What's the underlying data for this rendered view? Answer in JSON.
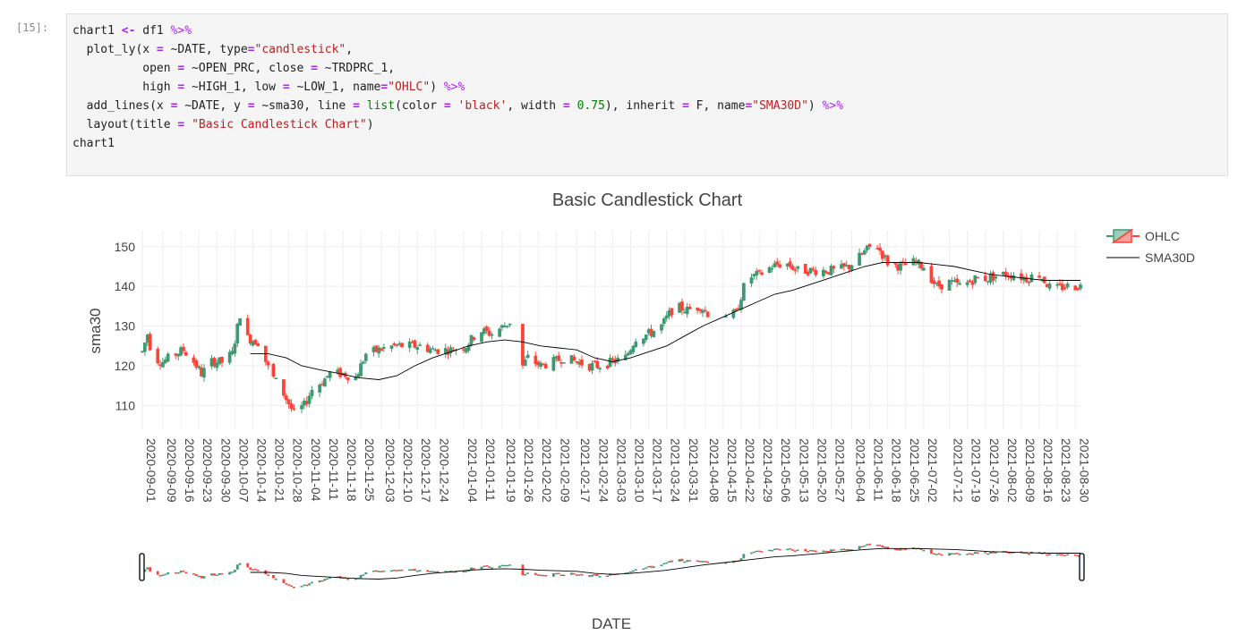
{
  "cell": {
    "prompt": "[15]:",
    "lines": [
      [
        [
          "chart1 ",
          ""
        ],
        [
          "<-",
          "op"
        ],
        [
          " df1 ",
          ""
        ],
        [
          "%>%",
          "pipe"
        ]
      ],
      [
        [
          "  plot_ly(x ",
          ""
        ],
        [
          "=",
          "op"
        ],
        [
          " ~DATE, type",
          ""
        ],
        [
          "=",
          "op"
        ],
        [
          "\"candlestick\"",
          "str"
        ],
        [
          ",",
          ""
        ]
      ],
      [
        [
          "          open ",
          ""
        ],
        [
          "=",
          "op"
        ],
        [
          " ~OPEN_PRC, close ",
          ""
        ],
        [
          "=",
          "op"
        ],
        [
          " ~TRDPRC_1,",
          ""
        ]
      ],
      [
        [
          "          high ",
          ""
        ],
        [
          "=",
          "op"
        ],
        [
          " ~HIGH_1, low ",
          ""
        ],
        [
          "=",
          "op"
        ],
        [
          " ~LOW_1, name",
          ""
        ],
        [
          "=",
          "op"
        ],
        [
          "\"OHLC\"",
          "str"
        ],
        [
          ") ",
          ""
        ],
        [
          "%>%",
          "pipe"
        ]
      ],
      [
        [
          "  add_lines(x ",
          ""
        ],
        [
          "=",
          "op"
        ],
        [
          " ~DATE, y ",
          ""
        ],
        [
          "=",
          "op"
        ],
        [
          " ~sma30, line ",
          ""
        ],
        [
          "=",
          "op"
        ],
        [
          " ",
          ""
        ],
        [
          "list",
          "kw"
        ],
        [
          "(color ",
          ""
        ],
        [
          "=",
          "op"
        ],
        [
          " ",
          ""
        ],
        [
          "'black'",
          "str"
        ],
        [
          ", width ",
          ""
        ],
        [
          "=",
          "op"
        ],
        [
          " ",
          ""
        ],
        [
          "0.75",
          "num"
        ],
        [
          "), inherit ",
          ""
        ],
        [
          "=",
          "op"
        ],
        [
          " F, name",
          ""
        ],
        [
          "=",
          "op"
        ],
        [
          "\"SMA30D\"",
          "str"
        ],
        [
          ") ",
          ""
        ],
        [
          "%>%",
          "pipe"
        ]
      ],
      [
        [
          "  layout(title ",
          ""
        ],
        [
          "=",
          "op"
        ],
        [
          " ",
          ""
        ],
        [
          "\"Basic Candlestick Chart\"",
          "str"
        ],
        [
          ")",
          ""
        ]
      ],
      [
        [
          "chart1",
          ""
        ]
      ]
    ]
  },
  "colors": {
    "increasing": "#3d9970",
    "decreasing": "#ff4136",
    "sma": "#000000",
    "grid": "#eeeeee"
  },
  "chart_data": {
    "type": "candlestick",
    "title": "Basic Candlestick Chart",
    "xlabel": "DATE",
    "ylabel": "sma30",
    "ylim": [
      104,
      154
    ],
    "yticks": [
      110,
      120,
      130,
      140,
      150
    ],
    "xrange": [
      "2020-09-01",
      "2021-09-01"
    ],
    "xticks": [
      "2020-09-01",
      "2020-09-09",
      "2020-09-16",
      "2020-09-23",
      "2020-09-30",
      "2020-10-07",
      "2020-10-14",
      "2020-10-21",
      "2020-10-28",
      "2020-11-04",
      "2020-11-11",
      "2020-11-18",
      "2020-11-25",
      "2020-12-03",
      "2020-12-10",
      "2020-12-17",
      "2020-12-24",
      "2021-01-04",
      "2021-01-11",
      "2021-01-19",
      "2021-01-26",
      "2021-02-02",
      "2021-02-09",
      "2021-02-17",
      "2021-02-24",
      "2021-03-03",
      "2021-03-10",
      "2021-03-17",
      "2021-03-24",
      "2021-03-31",
      "2021-04-08",
      "2021-04-15",
      "2021-04-22",
      "2021-04-29",
      "2021-05-06",
      "2021-05-13",
      "2021-05-20",
      "2021-05-27",
      "2021-06-04",
      "2021-06-11",
      "2021-06-18",
      "2021-06-25",
      "2021-07-02",
      "2021-07-12",
      "2021-07-19",
      "2021-07-26",
      "2021-08-02",
      "2021-08-09",
      "2021-08-16",
      "2021-08-23",
      "2021-08-30"
    ],
    "gaps": [
      [
        "2020-10-21",
        "2020-10-21"
      ],
      [
        "2021-01-23",
        "2021-01-26"
      ],
      [
        "2021-04-12",
        "2021-04-15"
      ]
    ],
    "close_path": [
      [
        "2020-09-01",
        123.5
      ],
      [
        "2020-09-03",
        128
      ],
      [
        "2020-09-05",
        122
      ],
      [
        "2020-09-09",
        121
      ],
      [
        "2020-09-14",
        123
      ],
      [
        "2020-09-17",
        124
      ],
      [
        "2020-09-21",
        121
      ],
      [
        "2020-09-24",
        118
      ],
      [
        "2020-09-28",
        121
      ],
      [
        "2020-10-02",
        121
      ],
      [
        "2020-10-06",
        123
      ],
      [
        "2020-10-09",
        133
      ],
      [
        "2020-10-12",
        127
      ],
      [
        "2020-10-16",
        126
      ],
      [
        "2020-10-21",
        118
      ],
      [
        "2020-10-26",
        113
      ],
      [
        "2020-10-30",
        108
      ],
      [
        "2020-11-03",
        110
      ],
      [
        "2020-11-06",
        114
      ],
      [
        "2020-11-10",
        116
      ],
      [
        "2020-11-13",
        118
      ],
      [
        "2020-11-18",
        118
      ],
      [
        "2020-11-23",
        117
      ],
      [
        "2020-11-27",
        123
      ],
      [
        "2020-12-02",
        124
      ],
      [
        "2020-12-08",
        125
      ],
      [
        "2020-12-14",
        125
      ],
      [
        "2020-12-18",
        125
      ],
      [
        "2020-12-23",
        124
      ],
      [
        "2020-12-30",
        124
      ],
      [
        "2021-01-05",
        125
      ],
      [
        "2021-01-10",
        129
      ],
      [
        "2021-01-15",
        128
      ],
      [
        "2021-01-22",
        131
      ],
      [
        "2021-01-26",
        119
      ],
      [
        "2021-01-29",
        122
      ],
      [
        "2021-02-03",
        120
      ],
      [
        "2021-02-08",
        121
      ],
      [
        "2021-02-12",
        122
      ],
      [
        "2021-02-17",
        121
      ],
      [
        "2021-02-22",
        120
      ],
      [
        "2021-02-26",
        120
      ],
      [
        "2021-03-03",
        121
      ],
      [
        "2021-03-08",
        122
      ],
      [
        "2021-03-12",
        127
      ],
      [
        "2021-03-17",
        128
      ],
      [
        "2021-03-22",
        130
      ],
      [
        "2021-03-27",
        135
      ],
      [
        "2021-04-01",
        134
      ],
      [
        "2021-04-06",
        135
      ],
      [
        "2021-04-11",
        132
      ],
      [
        "2021-04-15",
        133
      ],
      [
        "2021-04-20",
        133
      ],
      [
        "2021-04-24",
        142
      ],
      [
        "2021-04-29",
        143
      ],
      [
        "2021-05-04",
        145
      ],
      [
        "2021-05-09",
        146
      ],
      [
        "2021-05-14",
        144
      ],
      [
        "2021-05-19",
        144
      ],
      [
        "2021-05-24",
        144
      ],
      [
        "2021-05-29",
        144
      ],
      [
        "2021-06-03",
        145
      ],
      [
        "2021-06-08",
        148
      ],
      [
        "2021-06-13",
        151
      ],
      [
        "2021-06-18",
        146
      ],
      [
        "2021-06-23",
        145
      ],
      [
        "2021-06-28",
        146
      ],
      [
        "2021-07-02",
        145
      ],
      [
        "2021-07-07",
        140
      ],
      [
        "2021-07-12",
        141
      ],
      [
        "2021-07-17",
        140
      ],
      [
        "2021-07-22",
        142
      ],
      [
        "2021-07-27",
        142
      ],
      [
        "2021-08-01",
        143
      ],
      [
        "2021-08-06",
        143
      ],
      [
        "2021-08-11",
        142
      ],
      [
        "2021-08-16",
        143
      ],
      [
        "2021-08-21",
        139
      ],
      [
        "2021-08-26",
        140
      ],
      [
        "2021-09-01",
        140
      ]
    ],
    "series": [
      {
        "name": "OHLC",
        "type": "candlestick"
      },
      {
        "name": "SMA30D",
        "type": "line",
        "points": [
          [
            "2020-10-13",
            123
          ],
          [
            "2020-10-20",
            123
          ],
          [
            "2020-10-27",
            122
          ],
          [
            "2020-11-02",
            120
          ],
          [
            "2020-11-09",
            119
          ],
          [
            "2020-11-17",
            118
          ],
          [
            "2020-11-24",
            117
          ],
          [
            "2020-12-02",
            116.5
          ],
          [
            "2020-12-09",
            117.5
          ],
          [
            "2020-12-16",
            120
          ],
          [
            "2020-12-23",
            122
          ],
          [
            "2020-12-30",
            123.5
          ],
          [
            "2021-01-06",
            125
          ],
          [
            "2021-01-13",
            126
          ],
          [
            "2021-01-20",
            126.5
          ],
          [
            "2021-01-27",
            126
          ],
          [
            "2021-02-03",
            125
          ],
          [
            "2021-02-10",
            124.5
          ],
          [
            "2021-02-17",
            124
          ],
          [
            "2021-02-24",
            122
          ],
          [
            "2021-03-03",
            121
          ],
          [
            "2021-03-10",
            122
          ],
          [
            "2021-03-17",
            123.5
          ],
          [
            "2021-03-24",
            125
          ],
          [
            "2021-03-31",
            127.5
          ],
          [
            "2021-04-07",
            130
          ],
          [
            "2021-04-14",
            132
          ],
          [
            "2021-04-21",
            134
          ],
          [
            "2021-04-28",
            136
          ],
          [
            "2021-05-05",
            138
          ],
          [
            "2021-05-12",
            139
          ],
          [
            "2021-05-19",
            140.5
          ],
          [
            "2021-05-26",
            142
          ],
          [
            "2021-06-02",
            143.5
          ],
          [
            "2021-06-09",
            145
          ],
          [
            "2021-06-16",
            146
          ],
          [
            "2021-06-23",
            146
          ],
          [
            "2021-06-30",
            146
          ],
          [
            "2021-07-07",
            145.5
          ],
          [
            "2021-07-14",
            145
          ],
          [
            "2021-07-21",
            144
          ],
          [
            "2021-07-28",
            143
          ],
          [
            "2021-08-04",
            142.5
          ],
          [
            "2021-08-11",
            142
          ],
          [
            "2021-08-18",
            141.5
          ],
          [
            "2021-08-25",
            141.5
          ],
          [
            "2021-09-01",
            141.5
          ]
        ]
      }
    ],
    "legend_position": "top-right",
    "rangeslider": true
  }
}
